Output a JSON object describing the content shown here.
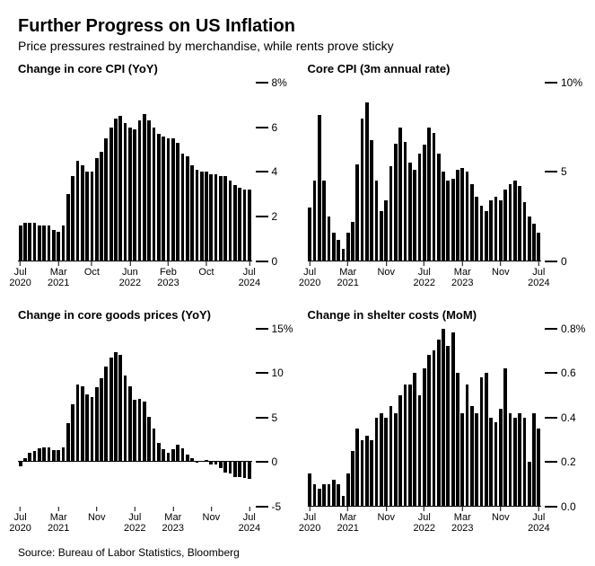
{
  "header": {
    "title": "Further Progress on US Inflation",
    "subtitle": "Price pressures restrained by merchandise, while rents prove sticky"
  },
  "footer": {
    "source": "Source: Bureau of Labor Statistics, Bloomberg"
  },
  "style": {
    "background_color": "#ffffff",
    "bar_color": "#000000",
    "text_color": "#000000",
    "title_fontsize": 20,
    "subtitle_fontsize": 14,
    "panel_title_fontsize": 13,
    "axis_fontsize": 12,
    "bar_gap_ratio": 0.3
  },
  "x_ticks": [
    {
      "month": "Jul",
      "year": "2020",
      "idx": 0
    },
    {
      "month": "Mar",
      "year": "2021",
      "idx": 8
    },
    {
      "month": "Oct",
      "year": "",
      "idx": 15
    },
    {
      "month": "Jun",
      "year": "2022",
      "idx": 23
    },
    {
      "month": "Feb",
      "year": "2023",
      "idx": 31
    },
    {
      "month": "Oct",
      "year": "",
      "idx": 39
    },
    {
      "month": "Jul",
      "year": "2024",
      "idx": 48
    }
  ],
  "x_ticks_alt": [
    {
      "month": "Jul",
      "year": "2020",
      "idx": 0
    },
    {
      "month": "Mar",
      "year": "2021",
      "idx": 8
    },
    {
      "month": "Nov",
      "year": "",
      "idx": 16
    },
    {
      "month": "Jul",
      "year": "2022",
      "idx": 24
    },
    {
      "month": "Mar",
      "year": "2023",
      "idx": 32
    },
    {
      "month": "Nov",
      "year": "",
      "idx": 40
    },
    {
      "month": "Jul",
      "year": "2024",
      "idx": 48
    }
  ],
  "panels": [
    {
      "id": "core-cpi-yoy",
      "title": "Change in core CPI (YoY)",
      "type": "bar",
      "ymin": 0,
      "ymax": 8,
      "yticks": [
        {
          "v": 0,
          "l": "0"
        },
        {
          "v": 2,
          "l": "2"
        },
        {
          "v": 4,
          "l": "4"
        },
        {
          "v": 6,
          "l": "6"
        },
        {
          "v": 8,
          "l": "8%"
        }
      ],
      "x_ticks_key": "x_ticks",
      "values": [
        1.6,
        1.7,
        1.7,
        1.7,
        1.6,
        1.6,
        1.6,
        1.4,
        1.3,
        1.6,
        3.0,
        3.8,
        4.5,
        4.3,
        4.0,
        4.0,
        4.6,
        4.9,
        5.5,
        6.0,
        6.4,
        6.5,
        6.2,
        6.0,
        5.9,
        6.3,
        6.6,
        6.3,
        6.0,
        5.7,
        5.6,
        5.5,
        5.5,
        5.3,
        4.8,
        4.7,
        4.3,
        4.1,
        4.0,
        4.0,
        3.9,
        3.9,
        3.8,
        3.8,
        3.6,
        3.4,
        3.3,
        3.2,
        3.2
      ]
    },
    {
      "id": "core-cpi-3m",
      "title": "Core CPI (3m annual rate)",
      "type": "bar",
      "ymin": 0,
      "ymax": 10,
      "yticks": [
        {
          "v": 0,
          "l": "0"
        },
        {
          "v": 5,
          "l": "5"
        },
        {
          "v": 10,
          "l": "10%"
        }
      ],
      "x_ticks_key": "x_ticks_alt",
      "values": [
        3.0,
        4.5,
        8.2,
        4.5,
        2.5,
        1.6,
        1.2,
        0.7,
        1.6,
        2.2,
        5.4,
        8.0,
        8.9,
        6.8,
        4.5,
        2.8,
        3.4,
        5.3,
        6.6,
        7.5,
        6.7,
        5.5,
        5.1,
        6.0,
        6.5,
        7.5,
        7.2,
        6.0,
        5.0,
        4.5,
        4.6,
        5.1,
        5.2,
        5.0,
        4.3,
        3.6,
        3.1,
        2.8,
        3.4,
        3.6,
        3.4,
        4.0,
        4.3,
        4.5,
        4.2,
        3.3,
        2.5,
        2.1,
        1.6
      ]
    },
    {
      "id": "core-goods-yoy",
      "title": "Change in core goods prices (YoY)",
      "type": "bar",
      "ymin": -5,
      "ymax": 15,
      "yticks": [
        {
          "v": -5,
          "l": "-5"
        },
        {
          "v": 0,
          "l": "0"
        },
        {
          "v": 5,
          "l": "5"
        },
        {
          "v": 10,
          "l": "10"
        },
        {
          "v": 15,
          "l": "15%"
        }
      ],
      "x_ticks_key": "x_ticks_alt",
      "values": [
        -0.5,
        0.4,
        1.0,
        1.2,
        1.6,
        1.7,
        1.7,
        1.3,
        1.3,
        1.7,
        4.4,
        6.5,
        8.7,
        8.5,
        7.6,
        7.3,
        8.4,
        9.4,
        10.7,
        11.7,
        12.3,
        12.0,
        9.7,
        8.5,
        7.0,
        7.1,
        6.8,
        5.1,
        3.8,
        2.2,
        1.4,
        1.0,
        1.5,
        2.0,
        1.6,
        0.8,
        0.4,
        -0.1,
        0.0,
        0.2,
        -0.3,
        -0.3,
        -0.7,
        -1.2,
        -1.3,
        -1.7,
        -1.7,
        -1.8,
        -1.9
      ]
    },
    {
      "id": "shelter-mom",
      "title": "Change in shelter costs (MoM)",
      "type": "bar",
      "ymin": 0,
      "ymax": 0.8,
      "yticks": [
        {
          "v": 0.0,
          "l": "0.0"
        },
        {
          "v": 0.2,
          "l": "0.2"
        },
        {
          "v": 0.4,
          "l": "0.4"
        },
        {
          "v": 0.6,
          "l": "0.6"
        },
        {
          "v": 0.8,
          "l": "0.8%"
        }
      ],
      "x_ticks_key": "x_ticks_alt",
      "values": [
        0.15,
        0.1,
        0.08,
        0.1,
        0.1,
        0.12,
        0.1,
        0.05,
        0.15,
        0.25,
        0.35,
        0.3,
        0.32,
        0.3,
        0.4,
        0.42,
        0.4,
        0.45,
        0.42,
        0.5,
        0.55,
        0.55,
        0.6,
        0.5,
        0.62,
        0.68,
        0.7,
        0.75,
        0.8,
        0.72,
        0.78,
        0.6,
        0.42,
        0.55,
        0.45,
        0.42,
        0.58,
        0.6,
        0.4,
        0.38,
        0.44,
        0.62,
        0.42,
        0.4,
        0.42,
        0.4,
        0.2,
        0.42,
        0.35
      ]
    }
  ]
}
